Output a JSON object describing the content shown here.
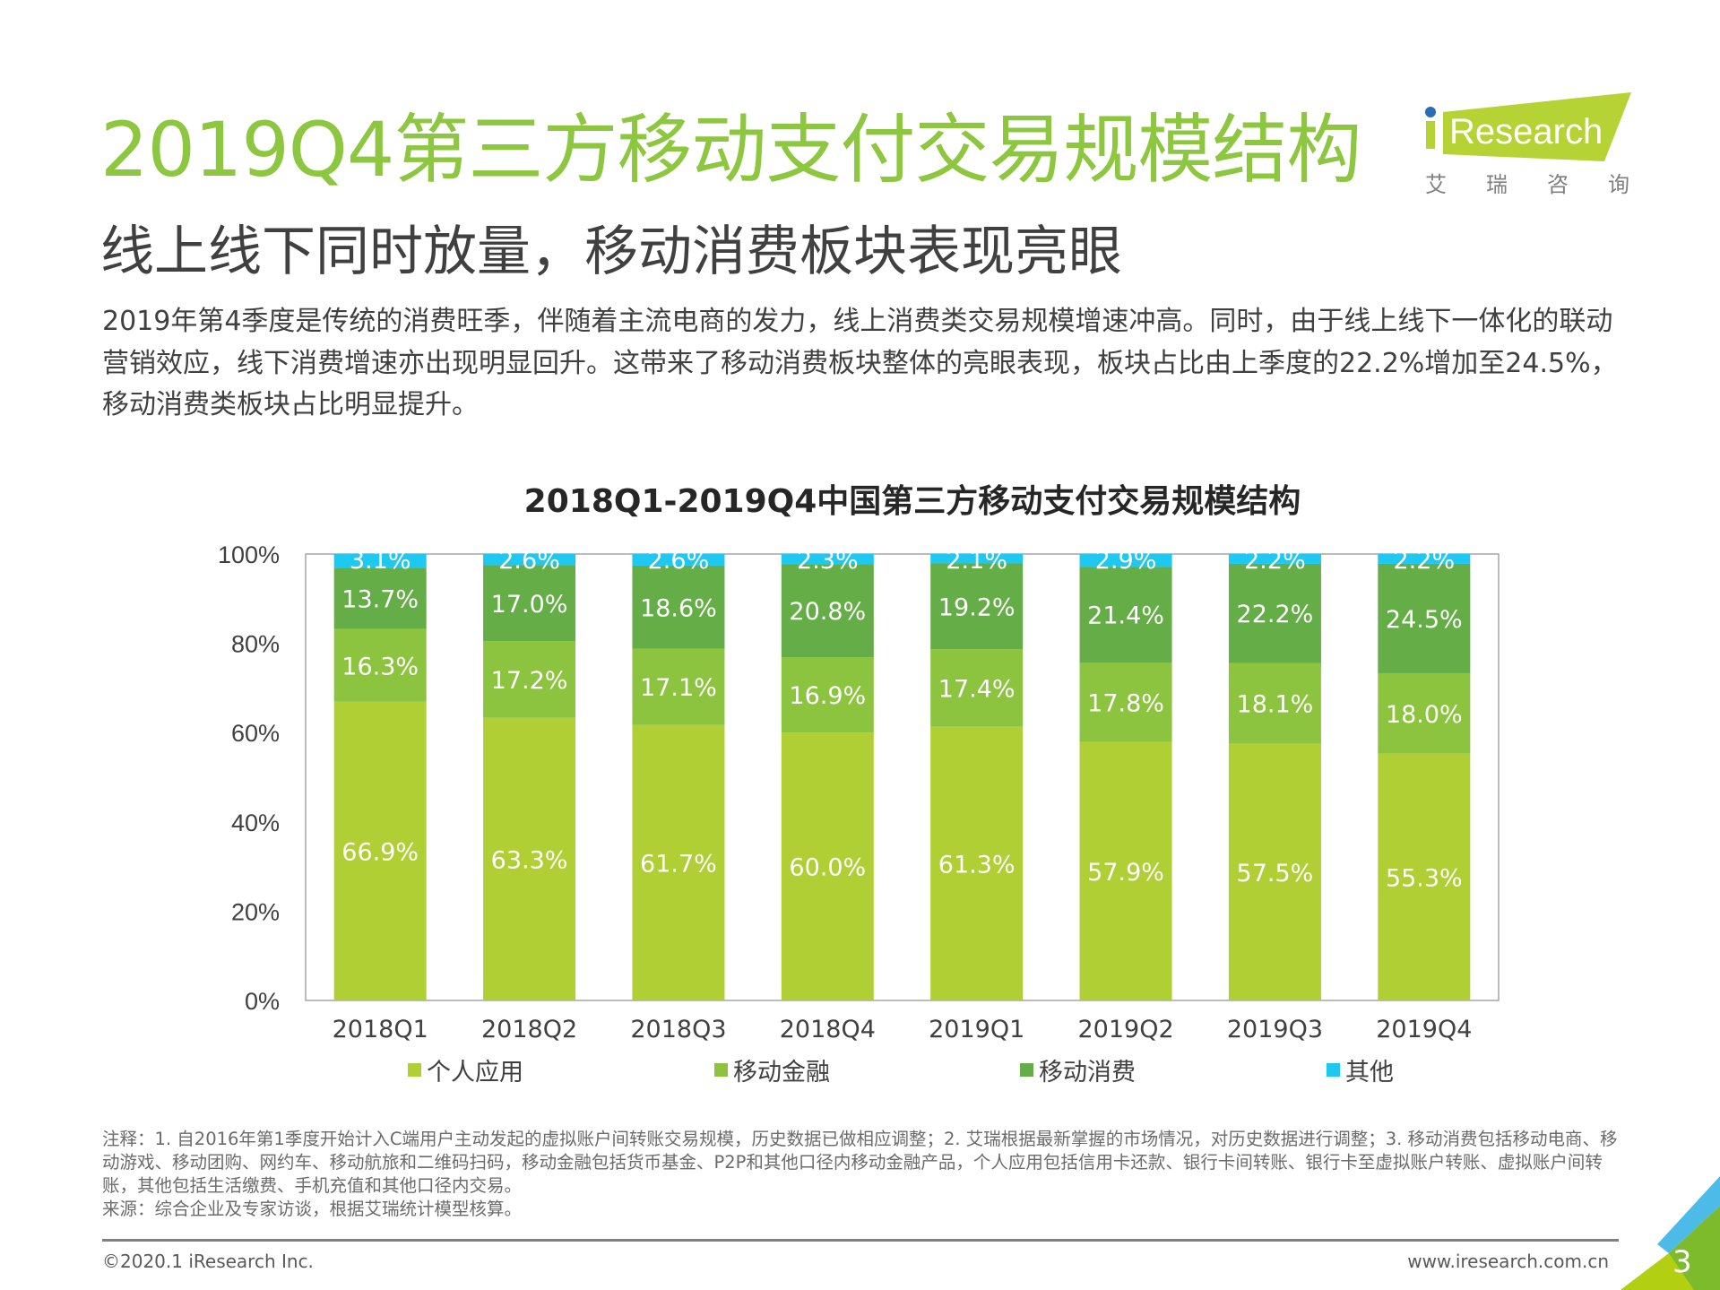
{
  "header": {
    "title": "2019Q4第三方移动支付交易规模结构",
    "subtitle": "线上线下同时放量，移动消费板块表现亮眼",
    "paragraph": "2019年第4季度是传统的消费旺季，伴随着主流电商的发力，线上消费类交易规模增速冲高。同时，由于线上线下一体化的联动营销效应，线下消费增速亦出现明显回升。这带来了移动消费板块整体的亮眼表现，板块占比由上季度的22.2%增加至24.5%，移动消费类板块占比明显提升。"
  },
  "logo": {
    "text": "iResearch",
    "cn": "艾瑞咨询"
  },
  "colors": {
    "title": "#8dc63f",
    "个人应用": "#afcf35",
    "移动金融": "#8cc43f",
    "移动消费": "#65ad46",
    "其他": "#1ec8f0"
  },
  "chart_data": {
    "type": "bar",
    "stacked": true,
    "title": "2018Q1-2019Q4中国第三方移动支付交易规模结构",
    "categories": [
      "2018Q1",
      "2018Q2",
      "2018Q3",
      "2018Q4",
      "2019Q1",
      "2019Q2",
      "2019Q3",
      "2019Q4"
    ],
    "series": [
      {
        "name": "个人应用",
        "values": [
          66.9,
          63.3,
          61.7,
          60.0,
          61.3,
          57.9,
          57.5,
          55.3
        ]
      },
      {
        "name": "移动金融",
        "values": [
          16.3,
          17.2,
          17.1,
          16.9,
          17.4,
          17.8,
          18.1,
          18.0
        ]
      },
      {
        "name": "移动消费",
        "values": [
          13.7,
          17.0,
          18.6,
          20.8,
          19.2,
          21.4,
          22.2,
          24.5
        ]
      },
      {
        "name": "其他",
        "values": [
          3.1,
          2.6,
          2.6,
          2.3,
          2.1,
          2.9,
          2.2,
          2.2
        ]
      }
    ],
    "yticks": [
      "0%",
      "20%",
      "40%",
      "60%",
      "80%",
      "100%"
    ],
    "ylim": [
      0,
      100
    ],
    "legend": "bottom",
    "grid": false
  },
  "notes": {
    "note": "注释：1. 自2016年第1季度开始计入C端用户主动发起的虚拟账户间转账交易规模，历史数据已做相应调整；2. 艾瑞根据最新掌握的市场情况，对历史数据进行调整；3. 移动消费包括移动电商、移动游戏、移动团购、网约车、移动航旅和二维码扫码，移动金融包括货币基金、P2P和其他口径内移动金融产品，个人应用包括信用卡还款、银行卡间转账、银行卡至虚拟账户转账、虚拟账户间转账，其他包括生活缴费、手机充值和其他口径内交易。",
    "source": "来源：综合企业及专家访谈，根据艾瑞统计模型核算。"
  },
  "footer": {
    "copyright": "©2020.1 iResearch Inc.",
    "site": "www.iresearch.com.cn",
    "page": "3"
  }
}
